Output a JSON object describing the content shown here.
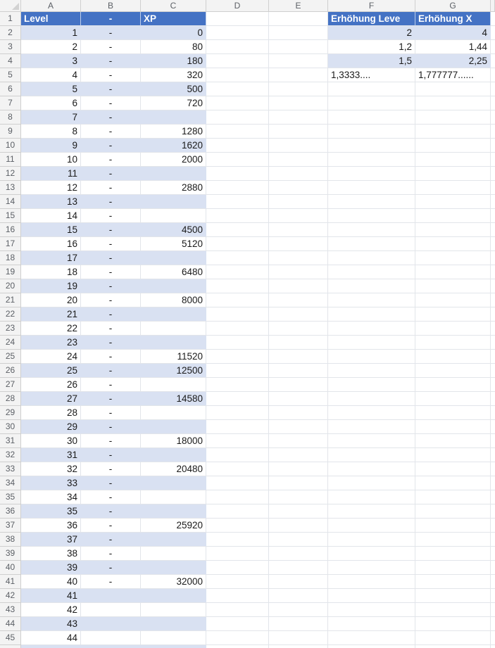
{
  "sheet": {
    "column_letters": [
      "A",
      "B",
      "C",
      "D",
      "E",
      "F",
      "G"
    ],
    "row_numbers": [
      "1",
      "2",
      "3",
      "4",
      "5",
      "6",
      "7",
      "8",
      "9",
      "10",
      "11",
      "12",
      "13",
      "14",
      "15",
      "16",
      "17",
      "18",
      "19",
      "20",
      "21",
      "22",
      "23",
      "24",
      "25",
      "26",
      "27",
      "28",
      "29",
      "30",
      "31",
      "32",
      "33",
      "34",
      "35",
      "36",
      "37",
      "38",
      "39",
      "40",
      "41",
      "42",
      "43",
      "44",
      "45"
    ],
    "colors": {
      "table_header_bg": "#4472C4",
      "table_header_text": "#FFFFFF",
      "band_bg": "#D9E1F2",
      "gridline": "#E2E5EA",
      "heading_bg": "#F3F3F3",
      "heading_text": "#5C6066",
      "heading_border": "#CFCFCF",
      "cell_text": "#1A1A1A"
    },
    "icons": {
      "filter_dropdown": "down-triangle",
      "select_all_corner": "corner-triangle",
      "table_resize_handle": "corner-angle"
    }
  },
  "level_table": {
    "headers": [
      {
        "label": "Level"
      },
      {
        "label": "-"
      },
      {
        "label": "XP"
      }
    ],
    "rows": [
      {
        "level": "1",
        "dash": "-",
        "xp": "0"
      },
      {
        "level": "2",
        "dash": "-",
        "xp": "80"
      },
      {
        "level": "3",
        "dash": "-",
        "xp": "180"
      },
      {
        "level": "4",
        "dash": "-",
        "xp": "320"
      },
      {
        "level": "5",
        "dash": "-",
        "xp": "500"
      },
      {
        "level": "6",
        "dash": "-",
        "xp": "720"
      },
      {
        "level": "7",
        "dash": "-",
        "xp": ""
      },
      {
        "level": "8",
        "dash": "-",
        "xp": "1280"
      },
      {
        "level": "9",
        "dash": "-",
        "xp": "1620"
      },
      {
        "level": "10",
        "dash": "-",
        "xp": "2000"
      },
      {
        "level": "11",
        "dash": "-",
        "xp": ""
      },
      {
        "level": "12",
        "dash": "-",
        "xp": "2880"
      },
      {
        "level": "13",
        "dash": "-",
        "xp": ""
      },
      {
        "level": "14",
        "dash": "-",
        "xp": ""
      },
      {
        "level": "15",
        "dash": "-",
        "xp": "4500"
      },
      {
        "level": "16",
        "dash": "-",
        "xp": "5120"
      },
      {
        "level": "17",
        "dash": "-",
        "xp": ""
      },
      {
        "level": "18",
        "dash": "-",
        "xp": "6480"
      },
      {
        "level": "19",
        "dash": "-",
        "xp": ""
      },
      {
        "level": "20",
        "dash": "-",
        "xp": "8000"
      },
      {
        "level": "21",
        "dash": "-",
        "xp": ""
      },
      {
        "level": "22",
        "dash": "-",
        "xp": ""
      },
      {
        "level": "23",
        "dash": "-",
        "xp": ""
      },
      {
        "level": "24",
        "dash": "-",
        "xp": "11520"
      },
      {
        "level": "25",
        "dash": "-",
        "xp": "12500"
      },
      {
        "level": "26",
        "dash": "-",
        "xp": ""
      },
      {
        "level": "27",
        "dash": "-",
        "xp": "14580"
      },
      {
        "level": "28",
        "dash": "-",
        "xp": ""
      },
      {
        "level": "29",
        "dash": "-",
        "xp": ""
      },
      {
        "level": "30",
        "dash": "-",
        "xp": "18000"
      },
      {
        "level": "31",
        "dash": "-",
        "xp": ""
      },
      {
        "level": "32",
        "dash": "-",
        "xp": "20480"
      },
      {
        "level": "33",
        "dash": "-",
        "xp": ""
      },
      {
        "level": "34",
        "dash": "-",
        "xp": ""
      },
      {
        "level": "35",
        "dash": "-",
        "xp": ""
      },
      {
        "level": "36",
        "dash": "-",
        "xp": "25920"
      },
      {
        "level": "37",
        "dash": "-",
        "xp": ""
      },
      {
        "level": "38",
        "dash": "-",
        "xp": ""
      },
      {
        "level": "39",
        "dash": "-",
        "xp": ""
      },
      {
        "level": "40",
        "dash": "-",
        "xp": "32000"
      },
      {
        "level": "41",
        "dash": "",
        "xp": ""
      },
      {
        "level": "42",
        "dash": "",
        "xp": ""
      },
      {
        "level": "43",
        "dash": "",
        "xp": ""
      },
      {
        "level": "44",
        "dash": "",
        "xp": ""
      }
    ]
  },
  "increase_table": {
    "headers": [
      {
        "label": "Erhöhung Leve"
      },
      {
        "label": "Erhöhung X"
      }
    ],
    "rows": [
      [
        {
          "v": "2"
        },
        {
          "v": "4"
        }
      ],
      [
        {
          "v": "1,2"
        },
        {
          "v": "1,44"
        }
      ],
      [
        {
          "v": "1,5"
        },
        {
          "v": "2,25"
        }
      ],
      [
        {
          "v": "1,3333....",
          "align": "left"
        },
        {
          "v": "1,777777......",
          "align": "left"
        }
      ]
    ]
  }
}
